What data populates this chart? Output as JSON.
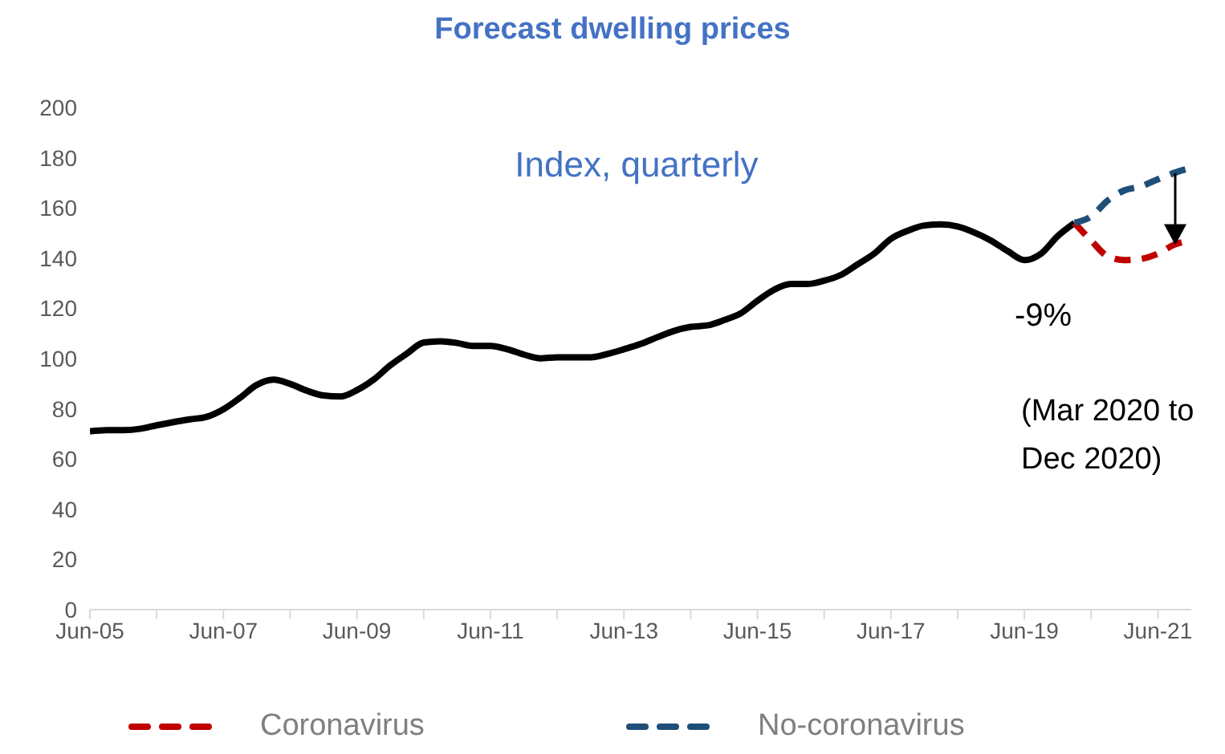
{
  "chart_data": {
    "type": "line",
    "title": "Forecast dwelling prices",
    "subtitle": "Index, quarterly",
    "annotations": [
      "-9%",
      "(Mar 2020 to Dec 2020)"
    ],
    "categories": [
      "Jun-05",
      null,
      null,
      null,
      null,
      null,
      null,
      null,
      "Jun-07",
      null,
      null,
      null,
      null,
      null,
      null,
      null,
      "Jun-09",
      null,
      null,
      null,
      null,
      null,
      null,
      null,
      "Jun-11",
      null,
      null,
      null,
      null,
      null,
      null,
      null,
      "Jun-13",
      null,
      null,
      null,
      null,
      null,
      null,
      null,
      "Jun-15",
      null,
      null,
      null,
      null,
      null,
      null,
      null,
      "Jun-17",
      null,
      null,
      null,
      null,
      null,
      null,
      null,
      "Jun-19",
      null,
      null,
      null,
      null,
      null,
      null,
      null,
      "Jun-21",
      null,
      null
    ],
    "series": [
      {
        "color": "#000000",
        "line_style": "solid",
        "values": [
          71,
          71.5,
          71.5,
          72,
          73.4,
          74.7,
          75.8,
          76.8,
          79.8,
          84.4,
          89.5,
          91.6,
          89.9,
          87.2,
          85.3,
          84.9,
          87.4,
          91.6,
          97.3,
          102,
          106.4,
          106.9,
          106.2,
          105,
          105,
          103.7,
          101.6,
          100.1,
          100.5,
          100.5,
          100.5,
          101.8,
          103.7,
          105.8,
          108.5,
          111,
          112.6,
          113.2,
          115.3,
          118,
          123,
          127.4,
          129.7,
          129.7,
          131,
          133.3,
          137.5,
          141.8,
          147.7,
          150.9,
          153,
          153.4,
          152.6,
          150.2,
          147,
          142.8,
          139.2,
          141.8,
          148.8,
          154,
          null,
          null,
          null,
          null,
          null,
          null,
          null
        ]
      },
      {
        "name": "Coronavirus",
        "color": "#c00000",
        "line_style": "dashed",
        "values": [
          null,
          null,
          null,
          null,
          null,
          null,
          null,
          null,
          null,
          null,
          null,
          null,
          null,
          null,
          null,
          null,
          null,
          null,
          null,
          null,
          null,
          null,
          null,
          null,
          null,
          null,
          null,
          null,
          null,
          null,
          null,
          null,
          null,
          null,
          null,
          null,
          null,
          null,
          null,
          null,
          null,
          null,
          null,
          null,
          null,
          null,
          null,
          null,
          null,
          null,
          null,
          null,
          null,
          null,
          null,
          null,
          null,
          null,
          null,
          154,
          147,
          140.7,
          139.2,
          139.7,
          141.8,
          145.4,
          147
        ]
      },
      {
        "name": "No-coronavirus",
        "color": "#1f4e79",
        "line_style": "dashed",
        "values": [
          null,
          null,
          null,
          null,
          null,
          null,
          null,
          null,
          null,
          null,
          null,
          null,
          null,
          null,
          null,
          null,
          null,
          null,
          null,
          null,
          null,
          null,
          null,
          null,
          null,
          null,
          null,
          null,
          null,
          null,
          null,
          null,
          null,
          null,
          null,
          null,
          null,
          null,
          null,
          null,
          null,
          null,
          null,
          null,
          null,
          null,
          null,
          null,
          null,
          null,
          null,
          null,
          null,
          null,
          null,
          null,
          null,
          null,
          null,
          154,
          156.6,
          163,
          167,
          168.6,
          171.4,
          174,
          176
        ]
      }
    ],
    "ylim": [
      0,
      200
    ],
    "yticks": [
      0,
      20,
      40,
      60,
      80,
      100,
      120,
      140,
      160,
      180,
      200
    ],
    "grid": false,
    "legend": "bottom",
    "marker": "none"
  }
}
